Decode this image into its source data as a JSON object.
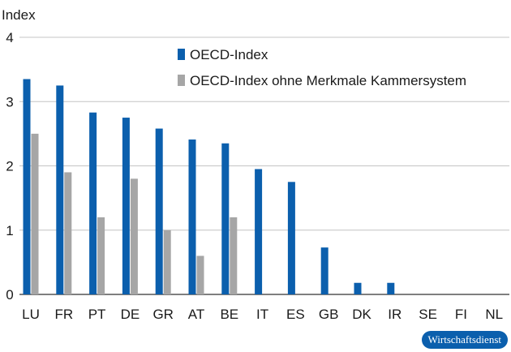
{
  "chart_data": {
    "type": "bar",
    "ylabel": "Index",
    "ylim": [
      0,
      4
    ],
    "yticks": [
      0,
      1,
      2,
      3,
      4
    ],
    "grid": true,
    "legend_position": "top-center",
    "categories": [
      "LU",
      "FR",
      "PT",
      "DE",
      "GR",
      "AT",
      "BE",
      "IT",
      "ES",
      "GB",
      "DK",
      "IR",
      "SE",
      "FI",
      "NL"
    ],
    "series": [
      {
        "name": "OECD-Index",
        "color": "#0b5fad",
        "values": [
          3.35,
          3.25,
          2.83,
          2.75,
          2.58,
          2.41,
          2.35,
          1.95,
          1.75,
          0.73,
          0.18,
          0.18,
          0,
          0,
          0
        ]
      },
      {
        "name": "OECD-Index ohne Merkmale Kammersystem",
        "color": "#a6a6a6",
        "values": [
          2.5,
          1.9,
          1.2,
          1.8,
          1.0,
          0.6,
          1.2,
          0,
          0,
          0,
          0,
          0,
          0,
          0,
          0
        ]
      }
    ]
  },
  "badge": {
    "text": "Wirtschaftsdienst",
    "color": "#0b5fad"
  }
}
